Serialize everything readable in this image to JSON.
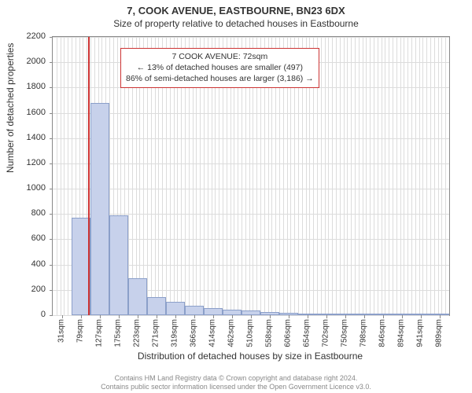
{
  "title": "7, COOK AVENUE, EASTBOURNE, BN23 6DX",
  "subtitle": "Size of property relative to detached houses in Eastbourne",
  "y_axis_title": "Number of detached properties",
  "x_axis_title": "Distribution of detached houses by size in Eastbourne",
  "footer_line1": "Contains HM Land Registry data © Crown copyright and database right 2024.",
  "footer_line2": "Contains public sector information licensed under the Open Government Licence v3.0.",
  "chart": {
    "type": "histogram",
    "ylim": [
      0,
      2200
    ],
    "y_ticks": [
      0,
      200,
      400,
      600,
      800,
      1000,
      1200,
      1400,
      1600,
      1800,
      2000,
      2200
    ],
    "x_categories": [
      "31sqm",
      "79sqm",
      "127sqm",
      "175sqm",
      "223sqm",
      "271sqm",
      "319sqm",
      "366sqm",
      "414sqm",
      "462sqm",
      "510sqm",
      "558sqm",
      "606sqm",
      "654sqm",
      "702sqm",
      "750sqm",
      "798sqm",
      "846sqm",
      "894sqm",
      "941sqm",
      "989sqm"
    ],
    "x_minor_grid_count": 4,
    "values": [
      0,
      770,
      1680,
      790,
      290,
      145,
      105,
      75,
      55,
      45,
      35,
      25,
      20,
      15,
      10,
      10,
      10,
      5,
      5,
      5,
      5
    ],
    "bar_fill": "#c7d1eb",
    "bar_border": "#8b9fc9",
    "grid_color": "#dcdcdc",
    "axis_color": "#888888",
    "background": "#ffffff",
    "reference_line_index": 1.88,
    "reference_line_color": "#cc3333",
    "annotation": {
      "line1": "7 COOK AVENUE: 72sqm",
      "line2": "← 13% of detached houses are smaller (497)",
      "line3": "86% of semi-detached houses are larger (3,186) →",
      "border_color": "#cc3333"
    }
  }
}
